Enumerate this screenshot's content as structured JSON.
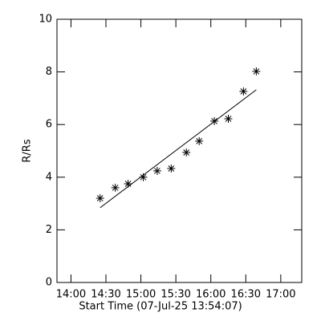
{
  "chart_data": {
    "type": "scatter",
    "x_label": "Start Time (07-Jul-25 13:54:07)",
    "y_label": "R/Rs",
    "x": [
      "14:25",
      "14:38",
      "14:49",
      "15:02",
      "15:14",
      "15:26",
      "15:39",
      "15:50",
      "16:03",
      "16:15",
      "16:28",
      "16:39"
    ],
    "values": [
      3.2,
      3.6,
      3.75,
      4.0,
      4.24,
      4.33,
      4.94,
      5.37,
      6.13,
      6.22,
      7.26,
      8.02
    ],
    "fit": {
      "x": [
        "14:25",
        "16:39"
      ],
      "values": [
        2.84,
        7.32
      ]
    },
    "color": "#000000",
    "xlim": [
      "13:48",
      "17:18"
    ],
    "xticks": [
      "14:00",
      "14:30",
      "15:00",
      "15:30",
      "16:00",
      "16:30",
      "17:00"
    ],
    "ylim": [
      0,
      10
    ],
    "yticks": [
      0,
      2,
      4,
      6,
      8,
      10
    ]
  }
}
